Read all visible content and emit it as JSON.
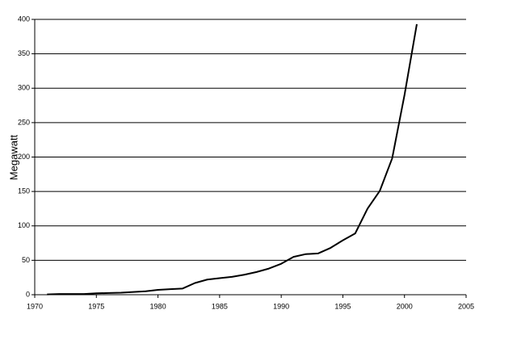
{
  "chart_data": {
    "type": "line",
    "ylabel": "Megawatt",
    "x": [
      1971,
      1972,
      1973,
      1974,
      1975,
      1976,
      1977,
      1978,
      1979,
      1980,
      1981,
      1982,
      1983,
      1984,
      1985,
      1986,
      1987,
      1988,
      1989,
      1990,
      1991,
      1992,
      1993,
      1994,
      1995,
      1996,
      1997,
      1998,
      1999,
      2000,
      2001
    ],
    "series": [
      {
        "color": "#000000",
        "values": [
          0.5,
          1,
          1,
          1,
          2,
          2.5,
          3,
          4,
          5,
          7,
          8,
          9,
          17,
          22,
          24,
          26,
          29,
          33,
          38,
          45,
          55,
          59,
          60,
          68,
          79,
          89,
          125,
          151,
          198,
          290,
          393
        ]
      }
    ],
    "xlim": [
      1970,
      2005
    ],
    "xticks": [
      1970,
      1975,
      1980,
      1985,
      1990,
      1995,
      2000,
      2005
    ],
    "ylim": [
      0,
      400
    ],
    "yticks": [
      0,
      50,
      100,
      150,
      200,
      250,
      300,
      350,
      400
    ],
    "grid": true
  }
}
